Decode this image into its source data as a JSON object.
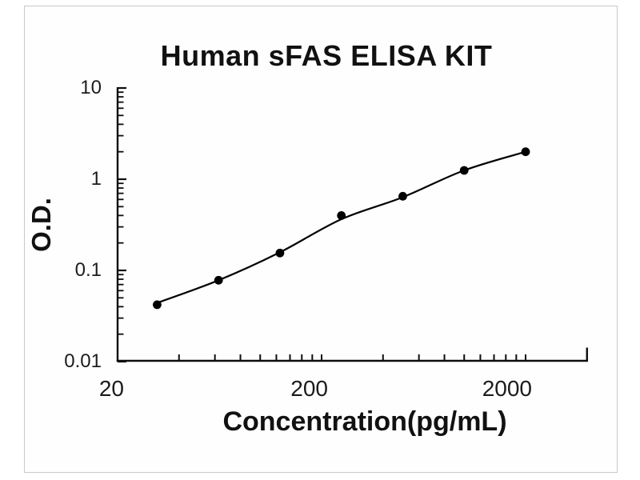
{
  "chart_data": {
    "type": "scatter",
    "subtype": "standard-curve-with-fitted-line",
    "title": "Human sFAS ELISA KIT",
    "xlabel": "Concentration(pg/mL)",
    "ylabel": "O.D.",
    "x_scale": "log",
    "y_scale": "log",
    "xlim": [
      20,
      4000
    ],
    "ylim": [
      0.01,
      10
    ],
    "grid": false,
    "legend": "none",
    "x_ticks": [
      {
        "value": 20,
        "label": "20"
      },
      {
        "value": 200,
        "label": "200"
      },
      {
        "value": 2000,
        "label": "2000"
      }
    ],
    "y_ticks": [
      {
        "value": 10,
        "label": "10"
      },
      {
        "value": 1,
        "label": "1"
      },
      {
        "value": 0.1,
        "label": "0.1"
      },
      {
        "value": 0.01,
        "label": "0.01"
      }
    ],
    "minor_tick_pattern": "log multiples 2-9 per decade, unlabeled",
    "series": [
      {
        "name": "standard curve points",
        "marker": "filled-circle",
        "color": "#000000",
        "x": [
          31.25,
          62.5,
          125,
          250,
          500,
          1000,
          2000
        ],
        "y": [
          0.042,
          0.078,
          0.155,
          0.4,
          0.65,
          1.25,
          2.0
        ]
      }
    ],
    "trendline": {
      "name": "fitted curve",
      "style": "smooth solid line",
      "color": "#000000",
      "x": [
        31.25,
        62.5,
        125,
        250,
        500,
        1000,
        2000
      ],
      "y": [
        0.044,
        0.078,
        0.158,
        0.364,
        0.635,
        1.25,
        2.0
      ]
    }
  },
  "colors": {
    "ink": "#0d0d0d",
    "tick_label": "#1c1c1c",
    "frame_border": "#c9c9c9",
    "background": "#ffffff"
  }
}
